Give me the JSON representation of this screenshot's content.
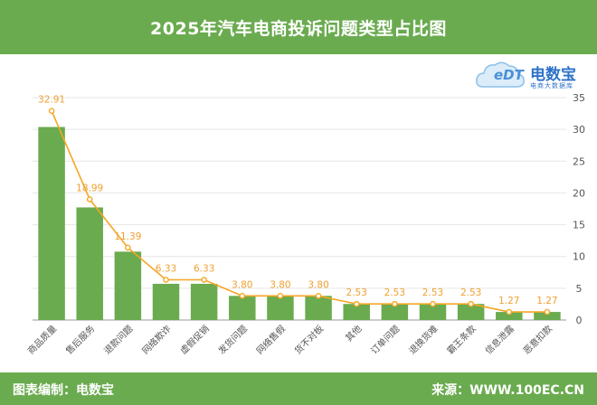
{
  "header": {
    "title": "2025年汽车电商投诉问题类型占比图"
  },
  "logo": {
    "brand": "电数宝",
    "tagline": "电商大数据库",
    "mark": "eDT"
  },
  "footer": {
    "left_text": "图表编制：电数宝",
    "right_text": "来源：WWW.100EC.CN"
  },
  "colors": {
    "bar": "#6aab4f",
    "line": "#f5a623",
    "label": "#f0a030",
    "header": "#6aab4f"
  },
  "chart_data": {
    "type": "bar",
    "categories": [
      "商品质量",
      "售后服务",
      "退款问题",
      "网络欺诈",
      "虚假促销",
      "发货问题",
      "网络售假",
      "货不对板",
      "其他",
      "订单问题",
      "退换货难",
      "霸王条款",
      "信息泄露",
      "恶意扣款"
    ],
    "values": [
      30.38,
      17.72,
      10.76,
      5.7,
      5.7,
      3.8,
      3.8,
      3.8,
      2.53,
      2.53,
      2.53,
      2.53,
      1.27,
      1.27
    ],
    "line_values": [
      32.91,
      18.99,
      11.39,
      6.33,
      6.33,
      3.8,
      3.8,
      3.8,
      2.53,
      2.53,
      2.53,
      2.53,
      1.27,
      1.27
    ],
    "line_labels": [
      "32.91",
      "18.99",
      "11.39",
      "6.33",
      "6.33",
      "3.80",
      "3.80",
      "3.80",
      "2.53",
      "2.53",
      "2.53",
      "2.53",
      "1.27",
      "1.27"
    ],
    "yticks": [
      0,
      5,
      10,
      15,
      20,
      25,
      30,
      35
    ],
    "ylim": [
      0,
      35
    ],
    "y_axis_side": "right",
    "grid": true
  }
}
